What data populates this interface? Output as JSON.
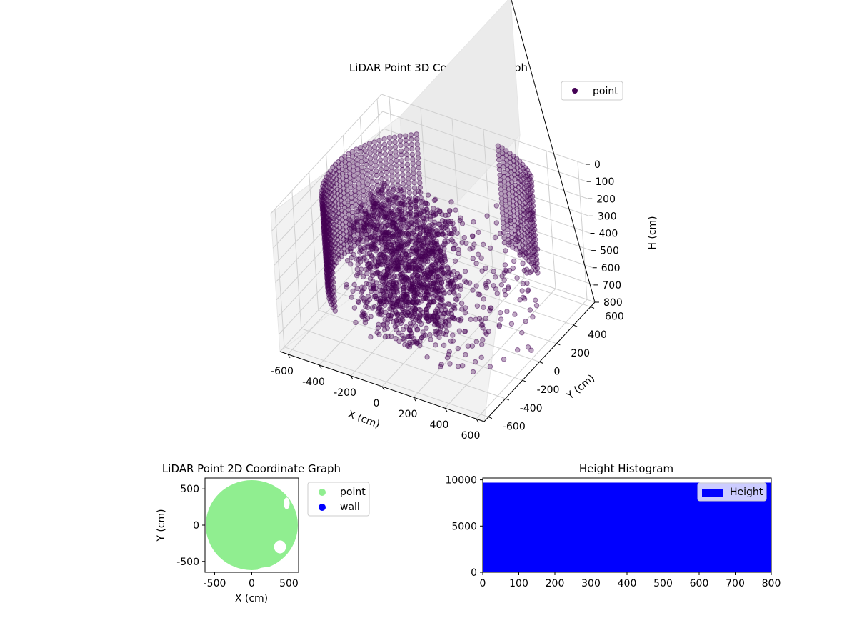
{
  "chart_data": [
    {
      "type": "scatter3d",
      "title": "LiDAR Point 3D Coordinate Graph",
      "xlabel": "X (cm)",
      "ylabel": "Y (cm)",
      "zlabel": "H (cm)",
      "xlim": [
        -650,
        650
      ],
      "ylim": [
        -650,
        650
      ],
      "zlim": [
        0,
        800
      ],
      "z_inverted": true,
      "xticks": [
        "-600",
        "-400",
        "-200",
        "0",
        "200",
        "400",
        "600"
      ],
      "yticks": [
        "-600",
        "-400",
        "-200",
        "0",
        "200",
        "400",
        "600"
      ],
      "zticks": [
        "0",
        "100",
        "200",
        "300",
        "400",
        "500",
        "600",
        "700",
        "800"
      ],
      "grid": true,
      "legend": {
        "placement": "top-right",
        "entries": [
          {
            "name": "point",
            "color": "#440154"
          }
        ]
      },
      "color": "#440154",
      "alpha": 0.35,
      "structures": [
        {
          "description_kind": "cylindrical wall",
          "radius_cm": 600,
          "theta_start_deg": 125,
          "theta_end_deg": 230,
          "h_start": 50,
          "h_end": 600
        },
        {
          "description_kind": "cylindrical wall",
          "radius_cm": 600,
          "theta_start_deg": 45,
          "theta_end_deg": 80,
          "h_start": 20,
          "h_end": 600
        },
        {
          "description_kind": "dense cluster",
          "center": [
            -150,
            -50
          ],
          "spread": [
            260,
            240
          ],
          "h_range": [
            150,
            800
          ]
        }
      ]
    },
    {
      "type": "scatter",
      "title": "LiDAR Point 2D Coordinate Graph",
      "xlabel": "X (cm)",
      "ylabel": "Y (cm)",
      "xlim": [
        -630,
        630
      ],
      "ylim": [
        -650,
        650
      ],
      "xticks": [
        "-500",
        "0",
        "500"
      ],
      "yticks": [
        "-500",
        "0",
        "500"
      ],
      "legend": {
        "placement": "outside-right",
        "entries": [
          {
            "name": "point",
            "color": "#90ee90"
          },
          {
            "name": "wall",
            "color": "#0000ff"
          }
        ]
      },
      "series": [
        {
          "name": "point",
          "color": "#90ee90",
          "shape": "disk",
          "radius_cm": 620
        },
        {
          "name": "wall",
          "color": "#0000ff",
          "values": []
        }
      ]
    },
    {
      "type": "histogram",
      "title": "Height Histogram",
      "xlim": [
        0,
        800
      ],
      "ylim": [
        0,
        10200
      ],
      "xticks": [
        "0",
        "100",
        "200",
        "300",
        "400",
        "500",
        "600",
        "700",
        "800"
      ],
      "yticks": [
        "0",
        "5000",
        "10000"
      ],
      "legend": {
        "placement": "top-right",
        "entries": [
          {
            "name": "Height",
            "color": "#0000ff"
          }
        ]
      },
      "series": [
        {
          "name": "Height",
          "color": "#0000ff",
          "bin_range": [
            0,
            800
          ],
          "count": 9700
        }
      ]
    }
  ]
}
